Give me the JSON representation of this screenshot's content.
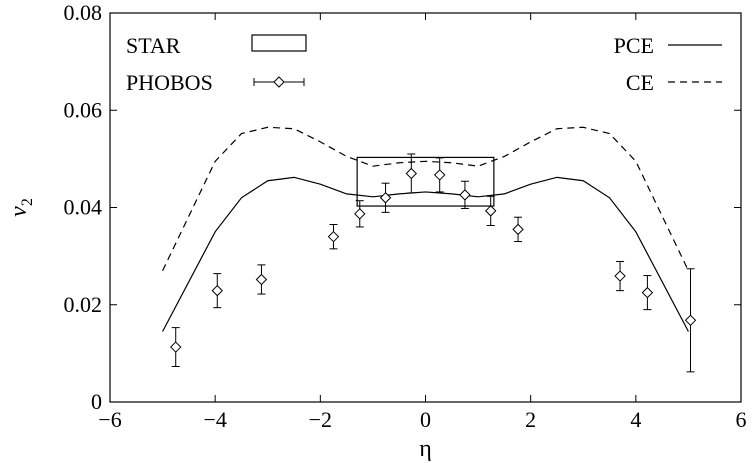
{
  "chart_data": {
    "type": "line",
    "xlabel": "η",
    "ylabel": "v",
    "ylabel_sub": "2",
    "xlim": [
      -6,
      6
    ],
    "ylim": [
      0,
      0.08
    ],
    "xticks": [
      -6,
      -4,
      -2,
      0,
      2,
      4,
      6
    ],
    "xtick_labels": [
      "−6",
      "−4",
      "−2",
      "0",
      "2",
      "4",
      "6"
    ],
    "yticks": [
      0,
      0.02,
      0.04,
      0.06,
      0.08
    ],
    "ytick_labels": [
      "0",
      "0.02",
      "0.04",
      "0.06",
      "0.08"
    ],
    "grid": false,
    "legend_placement": "top",
    "series": [
      {
        "name": "PCE",
        "style": "solid",
        "x": [
          -5,
          -4,
          -3.5,
          -3,
          -2.5,
          -2,
          -1.5,
          -1,
          -0.5,
          0,
          0.5,
          1,
          1.5,
          2,
          2.5,
          3,
          3.5,
          4,
          5
        ],
        "y": [
          0.0145,
          0.035,
          0.042,
          0.0455,
          0.0462,
          0.0448,
          0.0428,
          0.0422,
          0.0428,
          0.0432,
          0.0428,
          0.0422,
          0.0428,
          0.0448,
          0.0462,
          0.0455,
          0.042,
          0.035,
          0.0145
        ]
      },
      {
        "name": "CE",
        "style": "dashed",
        "x": [
          -5,
          -4,
          -3.5,
          -3,
          -2.5,
          -2,
          -1.5,
          -1,
          -0.5,
          0,
          0.5,
          1,
          1.5,
          2,
          2.5,
          3,
          3.5,
          4,
          5
        ],
        "y": [
          0.027,
          0.0495,
          0.0552,
          0.0565,
          0.0562,
          0.0535,
          0.0505,
          0.0485,
          0.0492,
          0.0495,
          0.0492,
          0.0485,
          0.0505,
          0.0535,
          0.0562,
          0.0565,
          0.0552,
          0.0495,
          0.027
        ]
      },
      {
        "name": "PHOBOS",
        "style": "points-errorbars",
        "points": [
          {
            "x": -4.75,
            "y": 0.0113,
            "err": 0.004
          },
          {
            "x": -3.96,
            "y": 0.0229,
            "err": 0.0035
          },
          {
            "x": -3.12,
            "y": 0.0252,
            "err": 0.003
          },
          {
            "x": -1.75,
            "y": 0.034,
            "err": 0.0025
          },
          {
            "x": -1.25,
            "y": 0.0387,
            "err": 0.0027
          },
          {
            "x": -0.76,
            "y": 0.042,
            "err": 0.003
          },
          {
            "x": -0.27,
            "y": 0.047,
            "err": 0.004
          },
          {
            "x": 0.27,
            "y": 0.0467,
            "err": 0.0035
          },
          {
            "x": 0.75,
            "y": 0.0426,
            "err": 0.0028
          },
          {
            "x": 1.24,
            "y": 0.0393,
            "err": 0.003
          },
          {
            "x": 1.76,
            "y": 0.0355,
            "err": 0.0025
          },
          {
            "x": 3.7,
            "y": 0.0259,
            "err": 0.003
          },
          {
            "x": 4.22,
            "y": 0.0225,
            "err": 0.0035
          },
          {
            "x": 5.04,
            "y": 0.0168,
            "err": 0.0106
          }
        ]
      },
      {
        "name": "STAR",
        "style": "box",
        "x_range": [
          -1.3,
          1.3
        ],
        "y_range": [
          0.0403,
          0.0503
        ]
      }
    ],
    "legend": [
      {
        "label": "STAR",
        "kind": "box"
      },
      {
        "label": "PHOBOS",
        "kind": "errorbar"
      },
      {
        "label": "PCE",
        "kind": "solid"
      },
      {
        "label": "CE",
        "kind": "dashed"
      }
    ]
  }
}
